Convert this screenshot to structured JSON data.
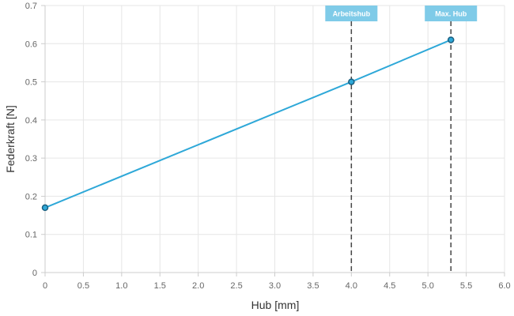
{
  "chart_data": {
    "type": "line",
    "xlabel": "Hub [mm]",
    "ylabel": "Federkraft [N]",
    "xlim": [
      0,
      6
    ],
    "ylim": [
      0,
      0.7
    ],
    "x_ticks": [
      "0",
      "0.5",
      "1.0",
      "1.5",
      "2.0",
      "2.5",
      "3.0",
      "3.5",
      "4.0",
      "4.5",
      "5.0",
      "5.5",
      "6.0"
    ],
    "y_ticks": [
      "0",
      "0.1",
      "0.2",
      "0.3",
      "0.4",
      "0.5",
      "0.6",
      "0.7"
    ],
    "grid": true,
    "series": [
      {
        "points": [
          [
            0,
            0.17
          ],
          [
            4.0,
            0.5
          ],
          [
            5.3,
            0.61
          ]
        ],
        "color": "#2ea8d8"
      }
    ],
    "markers": [
      {
        "label": "Arbeitshub",
        "x": 4.0
      },
      {
        "label": "Max. Hub",
        "x": 5.3
      }
    ],
    "colors": {
      "line": "#2ea8d8",
      "point_stroke": "#1a5f80",
      "marker_box": "#7fcbe8",
      "grid": "#e6e6e6"
    }
  }
}
